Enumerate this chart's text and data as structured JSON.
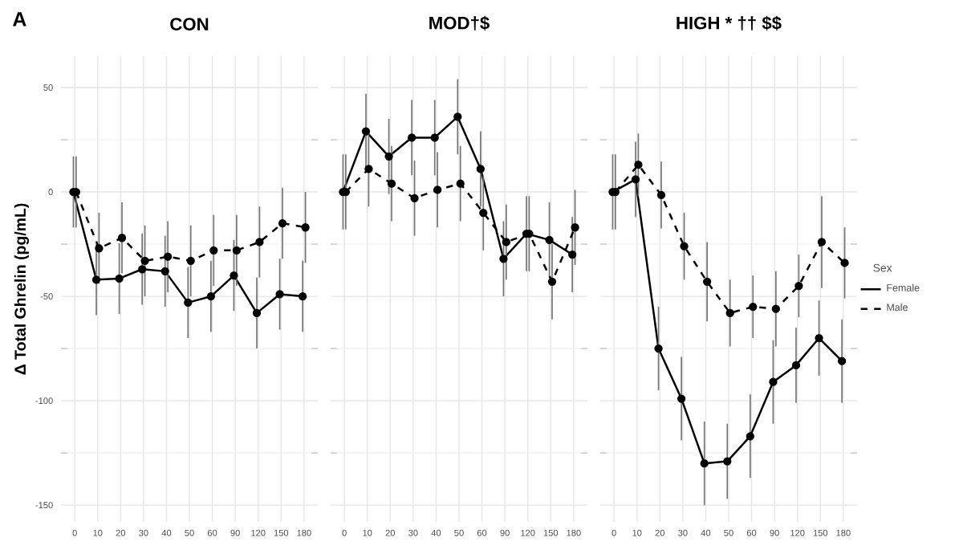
{
  "chart_data": [
    {
      "type": "line",
      "title": "CON",
      "ylabel": "Δ Total Ghrelin (pg/mL)",
      "annotations": [
        "**A**"
      ],
      "categories": [
        "0",
        "10",
        "20",
        "30",
        "40",
        "50",
        "60",
        "90",
        "120",
        "150",
        "180"
      ],
      "ylim": [
        -158,
        65
      ],
      "yticks": [
        -150,
        -100,
        -50,
        0,
        50
      ],
      "grid": true,
      "marker": "circle",
      "series": [
        {
          "color": "#000000",
          "line_style": "solid",
          "values": [
            0,
            -42,
            -41.5,
            -37,
            -38,
            -53,
            -50,
            -40,
            -58,
            -49,
            -50
          ],
          "errors": [
            17,
            17,
            17,
            17,
            17,
            17,
            17,
            17,
            17,
            17,
            17
          ]
        },
        {
          "color": "#000000",
          "line_style": "dashed",
          "values": [
            0,
            -27,
            -22,
            -33,
            -31,
            -33,
            -28,
            -28,
            -24,
            -15,
            -17
          ],
          "errors": [
            17,
            17,
            17,
            17,
            17,
            17,
            17,
            17,
            17,
            17,
            17
          ]
        }
      ]
    },
    {
      "type": "line",
      "title": "MOD†$",
      "categories": [
        "0",
        "10",
        "20",
        "30",
        "40",
        "50",
        "60",
        "90",
        "120",
        "150",
        "180"
      ],
      "ylim": [
        -158,
        65
      ],
      "yticks": [
        -150,
        -100,
        -50,
        0,
        50
      ],
      "grid": true,
      "marker": "circle",
      "tick_labels": "x",
      "series": [
        {
          "color": "#000000",
          "line_style": "solid",
          "values": [
            0,
            29,
            17,
            26,
            26,
            36,
            11,
            -32,
            -20,
            -23,
            -30
          ],
          "errors": [
            18,
            18,
            18,
            18,
            18,
            18,
            18,
            18,
            18,
            18,
            18
          ]
        },
        {
          "color": "#000000",
          "line_style": "dashed",
          "values": [
            0,
            11,
            4,
            -3,
            1,
            4,
            -10,
            -24,
            -20,
            -43,
            -17
          ],
          "errors": [
            18,
            18,
            18,
            18,
            18,
            18,
            18,
            18,
            18,
            18,
            18
          ]
        }
      ]
    },
    {
      "type": "line",
      "title": "HIGH * †† $$",
      "categories": [
        "0",
        "10",
        "20",
        "30",
        "40",
        "50",
        "60",
        "90",
        "120",
        "150",
        "180"
      ],
      "ylim": [
        -158,
        65
      ],
      "yticks": [
        -150,
        -100,
        -50,
        0,
        50
      ],
      "grid": true,
      "marker": "circle",
      "tick_labels": "x",
      "legend": "right",
      "legend_title": "Sex",
      "series": [
        {
          "name": "Female",
          "color": "#000000",
          "line_style": "solid",
          "values": [
            0,
            6,
            -75,
            -99,
            -130,
            -129,
            -117,
            -91,
            -83,
            -70,
            -81
          ],
          "errors": [
            18,
            18,
            20,
            20,
            20,
            18,
            20,
            20,
            18,
            18,
            20
          ]
        },
        {
          "name": "Male",
          "color": "#000000",
          "line_style": "dashed",
          "values": [
            0,
            13,
            -1.5,
            -26,
            -43,
            -58,
            -55,
            -56,
            -45,
            -24,
            -34
          ],
          "errors": [
            18,
            15,
            16,
            16,
            19,
            16,
            15,
            18,
            15,
            22,
            17
          ]
        }
      ]
    }
  ]
}
